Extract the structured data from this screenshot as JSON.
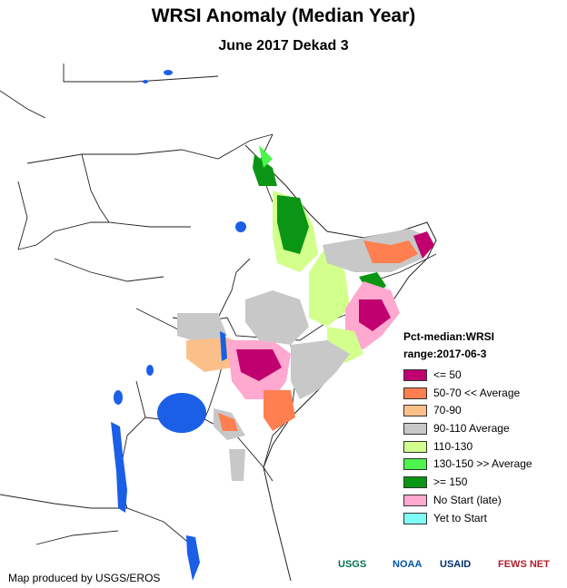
{
  "header": {
    "title": "WRSI Anomaly (Median Year)",
    "subtitle": "June 2017 Dekad 3"
  },
  "legend": {
    "title": "Pct-median:WRSI",
    "range": "range:2017-06-3",
    "items": [
      {
        "label": "<= 50",
        "color": "#c0006e"
      },
      {
        "label": "50-70 << Average",
        "color": "#ff7f50"
      },
      {
        "label": "70-90",
        "color": "#fbc08a"
      },
      {
        "label": "90-110 Average",
        "color": "#c8c8c8"
      },
      {
        "label": "110-130",
        "color": "#d3ff8c"
      },
      {
        "label": "130-150 >> Average",
        "color": "#4cf54c"
      },
      {
        "label": ">= 150",
        "color": "#0a9614"
      },
      {
        "label": "No Start (late)",
        "color": "#ffa8d0"
      },
      {
        "label": "Yet to Start",
        "color": "#7ffcf5"
      }
    ]
  },
  "footer": {
    "credit": "Map produced by USGS/EROS",
    "logos": [
      "USGS",
      "NOAA",
      "USAID",
      "FEWS NET"
    ]
  }
}
